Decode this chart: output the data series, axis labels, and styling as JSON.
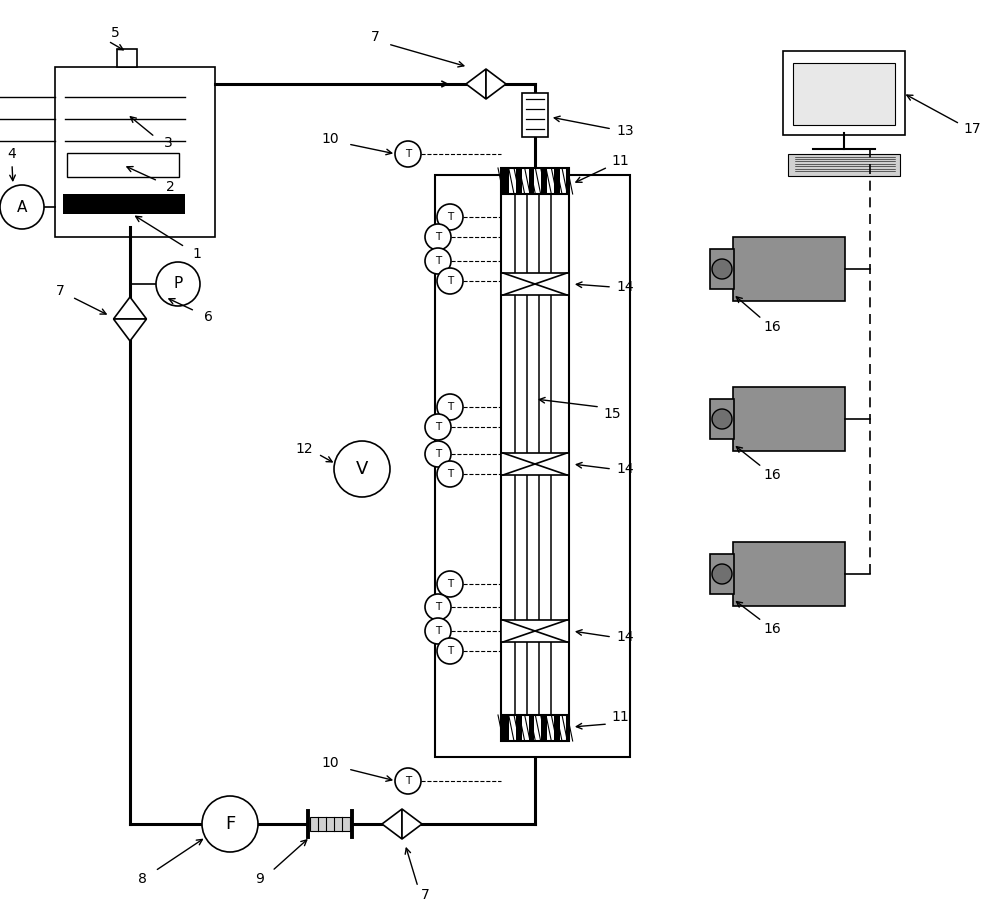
{
  "bg_color": "#ffffff",
  "black": "#000000",
  "gray": "#999999",
  "figsize": [
    10.0,
    9.19
  ],
  "dpi": 100,
  "xlim": [
    0,
    10
  ],
  "ylim": [
    0,
    9.19
  ]
}
